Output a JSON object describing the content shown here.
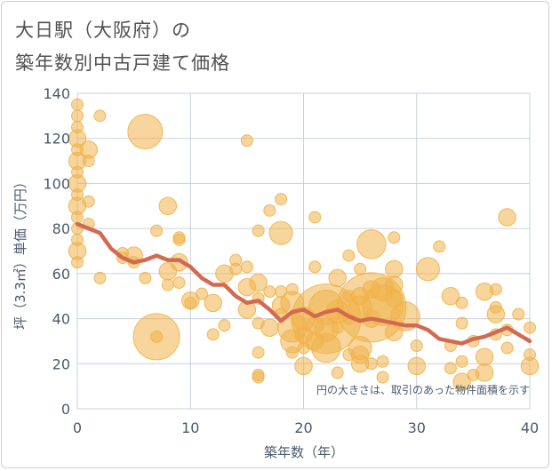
{
  "title_line1": "大日駅（大阪府）の",
  "title_line2": "築年数別中古戸建て価格",
  "chart_data": {
    "type": "scatter",
    "xlabel": "築年数（年）",
    "ylabel": "坪（3.3㎡）単価（万円）",
    "xlim": [
      0,
      40
    ],
    "ylim": [
      0,
      140
    ],
    "xticks": [
      "0",
      "10",
      "20",
      "30",
      "40"
    ],
    "yticks": [
      "0",
      "20",
      "40",
      "60",
      "80",
      "100",
      "120",
      "140"
    ],
    "grid": true,
    "annotation": "円の大きさは、取引のあった物件面積を示す",
    "bubble_color": "#f0b24a",
    "line_color": "#d26a52",
    "points": [
      {
        "x": 0,
        "y": 135,
        "s": 1
      },
      {
        "x": 0,
        "y": 130,
        "s": 1
      },
      {
        "x": 0,
        "y": 125,
        "s": 1
      },
      {
        "x": 0,
        "y": 120,
        "s": 1.5
      },
      {
        "x": 0,
        "y": 115,
        "s": 1
      },
      {
        "x": 0,
        "y": 110,
        "s": 1.5
      },
      {
        "x": 0,
        "y": 105,
        "s": 1
      },
      {
        "x": 0,
        "y": 100,
        "s": 1.5
      },
      {
        "x": 0,
        "y": 95,
        "s": 1
      },
      {
        "x": 0,
        "y": 90,
        "s": 1.5
      },
      {
        "x": 0,
        "y": 85,
        "s": 1
      },
      {
        "x": 0,
        "y": 80,
        "s": 1
      },
      {
        "x": 0,
        "y": 75,
        "s": 1
      },
      {
        "x": 0,
        "y": 70,
        "s": 1.5
      },
      {
        "x": 0,
        "y": 65,
        "s": 1
      },
      {
        "x": 1,
        "y": 115,
        "s": 1.5
      },
      {
        "x": 1,
        "y": 110,
        "s": 1
      },
      {
        "x": 1,
        "y": 92,
        "s": 1
      },
      {
        "x": 1,
        "y": 82,
        "s": 1
      },
      {
        "x": 2,
        "y": 130,
        "s": 1
      },
      {
        "x": 2,
        "y": 58,
        "s": 1
      },
      {
        "x": 4,
        "y": 69,
        "s": 1
      },
      {
        "x": 4,
        "y": 67,
        "s": 1
      },
      {
        "x": 5,
        "y": 68,
        "s": 1.5
      },
      {
        "x": 5,
        "y": 65,
        "s": 1
      },
      {
        "x": 6,
        "y": 123,
        "s": 3
      },
      {
        "x": 6,
        "y": 58,
        "s": 1
      },
      {
        "x": 7,
        "y": 79,
        "s": 1
      },
      {
        "x": 7,
        "y": 32,
        "s": 4
      },
      {
        "x": 7,
        "y": 32,
        "s": 1
      },
      {
        "x": 8,
        "y": 90,
        "s": 1.5
      },
      {
        "x": 8,
        "y": 61,
        "s": 1.5
      },
      {
        "x": 8,
        "y": 55,
        "s": 1
      },
      {
        "x": 9,
        "y": 76,
        "s": 1
      },
      {
        "x": 9,
        "y": 75,
        "s": 1
      },
      {
        "x": 9,
        "y": 65,
        "s": 1.5
      },
      {
        "x": 9,
        "y": 56,
        "s": 1
      },
      {
        "x": 10,
        "y": 48,
        "s": 1.5
      },
      {
        "x": 10,
        "y": 47,
        "s": 1
      },
      {
        "x": 11,
        "y": 51,
        "s": 1
      },
      {
        "x": 12,
        "y": 47,
        "s": 1.5
      },
      {
        "x": 12,
        "y": 33,
        "s": 1
      },
      {
        "x": 13,
        "y": 60,
        "s": 1.5
      },
      {
        "x": 13,
        "y": 37,
        "s": 1
      },
      {
        "x": 14,
        "y": 66,
        "s": 1
      },
      {
        "x": 14,
        "y": 62,
        "s": 1
      },
      {
        "x": 15,
        "y": 119,
        "s": 1
      },
      {
        "x": 15,
        "y": 63,
        "s": 1
      },
      {
        "x": 15,
        "y": 54,
        "s": 1.5
      },
      {
        "x": 15,
        "y": 44,
        "s": 1.5
      },
      {
        "x": 16,
        "y": 79,
        "s": 1
      },
      {
        "x": 16,
        "y": 56,
        "s": 1.5
      },
      {
        "x": 16,
        "y": 49,
        "s": 1
      },
      {
        "x": 16,
        "y": 38,
        "s": 1
      },
      {
        "x": 16,
        "y": 25,
        "s": 1
      },
      {
        "x": 16,
        "y": 15,
        "s": 1
      },
      {
        "x": 16,
        "y": 14,
        "s": 1
      },
      {
        "x": 17,
        "y": 88,
        "s": 1
      },
      {
        "x": 17,
        "y": 52,
        "s": 1
      },
      {
        "x": 17,
        "y": 36,
        "s": 1.5
      },
      {
        "x": 18,
        "y": 93,
        "s": 1
      },
      {
        "x": 18,
        "y": 78,
        "s": 2
      },
      {
        "x": 18,
        "y": 52,
        "s": 1
      },
      {
        "x": 18,
        "y": 46,
        "s": 1.5
      },
      {
        "x": 18,
        "y": 42,
        "s": 1
      },
      {
        "x": 19,
        "y": 53,
        "s": 1
      },
      {
        "x": 19,
        "y": 47,
        "s": 2
      },
      {
        "x": 19,
        "y": 36,
        "s": 2.5
      },
      {
        "x": 19,
        "y": 30,
        "s": 2
      },
      {
        "x": 19,
        "y": 25,
        "s": 1
      },
      {
        "x": 20,
        "y": 40,
        "s": 2
      },
      {
        "x": 20,
        "y": 33,
        "s": 1.5
      },
      {
        "x": 20,
        "y": 27,
        "s": 1
      },
      {
        "x": 20,
        "y": 19,
        "s": 1.5
      },
      {
        "x": 21,
        "y": 85,
        "s": 1
      },
      {
        "x": 21,
        "y": 63,
        "s": 1
      },
      {
        "x": 21,
        "y": 37,
        "s": 1.5
      },
      {
        "x": 21,
        "y": 30,
        "s": 1.5
      },
      {
        "x": 22,
        "y": 45,
        "s": 3
      },
      {
        "x": 22,
        "y": 40,
        "s": 6
      },
      {
        "x": 22,
        "y": 35,
        "s": 2
      },
      {
        "x": 22,
        "y": 27,
        "s": 2.5
      },
      {
        "x": 23,
        "y": 58,
        "s": 1.5
      },
      {
        "x": 23,
        "y": 43,
        "s": 2
      },
      {
        "x": 23,
        "y": 36,
        "s": 1
      },
      {
        "x": 23,
        "y": 16,
        "s": 1
      },
      {
        "x": 24,
        "y": 68,
        "s": 1
      },
      {
        "x": 24,
        "y": 50,
        "s": 1
      },
      {
        "x": 24,
        "y": 40,
        "s": 1
      },
      {
        "x": 24,
        "y": 24,
        "s": 1
      },
      {
        "x": 25,
        "y": 62,
        "s": 1
      },
      {
        "x": 25,
        "y": 50,
        "s": 1.5
      },
      {
        "x": 25,
        "y": 45,
        "s": 2
      },
      {
        "x": 25,
        "y": 27,
        "s": 2
      },
      {
        "x": 25,
        "y": 24,
        "s": 1.5
      },
      {
        "x": 25,
        "y": 20,
        "s": 1.5
      },
      {
        "x": 26,
        "y": 73,
        "s": 2.5
      },
      {
        "x": 26,
        "y": 53,
        "s": 1.5
      },
      {
        "x": 26,
        "y": 45,
        "s": 6
      },
      {
        "x": 26,
        "y": 40,
        "s": 1.5
      },
      {
        "x": 26,
        "y": 20,
        "s": 1
      },
      {
        "x": 27,
        "y": 53,
        "s": 2
      },
      {
        "x": 27,
        "y": 46,
        "s": 3.5
      },
      {
        "x": 27,
        "y": 21,
        "s": 1
      },
      {
        "x": 27,
        "y": 14,
        "s": 1
      },
      {
        "x": 28,
        "y": 76,
        "s": 1
      },
      {
        "x": 28,
        "y": 62,
        "s": 1.5
      },
      {
        "x": 28,
        "y": 55,
        "s": 1.5
      },
      {
        "x": 28,
        "y": 49,
        "s": 1.5
      },
      {
        "x": 28,
        "y": 34,
        "s": 1.5
      },
      {
        "x": 29,
        "y": 41,
        "s": 2.5
      },
      {
        "x": 30,
        "y": 28,
        "s": 1
      },
      {
        "x": 30,
        "y": 19,
        "s": 1.5
      },
      {
        "x": 31,
        "y": 62,
        "s": 2
      },
      {
        "x": 32,
        "y": 72,
        "s": 1
      },
      {
        "x": 33,
        "y": 50,
        "s": 1.5
      },
      {
        "x": 33,
        "y": 28,
        "s": 1
      },
      {
        "x": 33,
        "y": 18,
        "s": 1
      },
      {
        "x": 34,
        "y": 47,
        "s": 1
      },
      {
        "x": 34,
        "y": 38,
        "s": 1
      },
      {
        "x": 34,
        "y": 21,
        "s": 1
      },
      {
        "x": 34,
        "y": 12,
        "s": 1.5
      },
      {
        "x": 35,
        "y": 30,
        "s": 1
      },
      {
        "x": 35,
        "y": 15,
        "s": 1
      },
      {
        "x": 36,
        "y": 52,
        "s": 1.5
      },
      {
        "x": 36,
        "y": 23,
        "s": 1.5
      },
      {
        "x": 36,
        "y": 16,
        "s": 1.5
      },
      {
        "x": 37,
        "y": 53,
        "s": 1
      },
      {
        "x": 37,
        "y": 45,
        "s": 1
      },
      {
        "x": 37,
        "y": 42,
        "s": 1.5
      },
      {
        "x": 37,
        "y": 33,
        "s": 1
      },
      {
        "x": 38,
        "y": 85,
        "s": 1.5
      },
      {
        "x": 38,
        "y": 35,
        "s": 1
      },
      {
        "x": 38,
        "y": 27,
        "s": 1
      },
      {
        "x": 39,
        "y": 42,
        "s": 1
      },
      {
        "x": 40,
        "y": 36,
        "s": 1
      },
      {
        "x": 40,
        "y": 24,
        "s": 1
      },
      {
        "x": 40,
        "y": 19,
        "s": 1.5
      }
    ],
    "trend": [
      {
        "x": 0,
        "y": 82
      },
      {
        "x": 1,
        "y": 80
      },
      {
        "x": 2,
        "y": 78
      },
      {
        "x": 3,
        "y": 71
      },
      {
        "x": 4,
        "y": 67
      },
      {
        "x": 5,
        "y": 65
      },
      {
        "x": 6,
        "y": 66
      },
      {
        "x": 7,
        "y": 68
      },
      {
        "x": 8,
        "y": 66
      },
      {
        "x": 9,
        "y": 66
      },
      {
        "x": 10,
        "y": 63
      },
      {
        "x": 11,
        "y": 58
      },
      {
        "x": 12,
        "y": 55
      },
      {
        "x": 13,
        "y": 55
      },
      {
        "x": 14,
        "y": 50
      },
      {
        "x": 15,
        "y": 47
      },
      {
        "x": 16,
        "y": 48
      },
      {
        "x": 17,
        "y": 44
      },
      {
        "x": 18,
        "y": 39
      },
      {
        "x": 19,
        "y": 43
      },
      {
        "x": 20,
        "y": 44
      },
      {
        "x": 21,
        "y": 41
      },
      {
        "x": 22,
        "y": 43
      },
      {
        "x": 23,
        "y": 44
      },
      {
        "x": 24,
        "y": 41
      },
      {
        "x": 25,
        "y": 39
      },
      {
        "x": 26,
        "y": 40
      },
      {
        "x": 27,
        "y": 39
      },
      {
        "x": 28,
        "y": 38
      },
      {
        "x": 29,
        "y": 37
      },
      {
        "x": 30,
        "y": 37
      },
      {
        "x": 31,
        "y": 35
      },
      {
        "x": 32,
        "y": 31
      },
      {
        "x": 33,
        "y": 30
      },
      {
        "x": 34,
        "y": 29
      },
      {
        "x": 35,
        "y": 31
      },
      {
        "x": 36,
        "y": 32
      },
      {
        "x": 37,
        "y": 34
      },
      {
        "x": 38,
        "y": 36
      },
      {
        "x": 39,
        "y": 33
      },
      {
        "x": 40,
        "y": 30
      }
    ]
  }
}
